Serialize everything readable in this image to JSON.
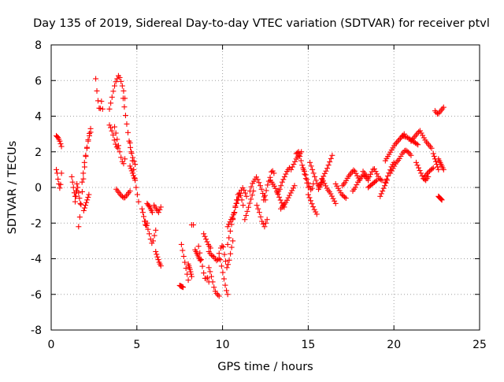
{
  "chart_data": {
    "type": "scatter",
    "title": "Day 135 of 2019, Sidereal Day-to-day VTEC variation (SDTVAR) for receiver ptvl",
    "xlabel": "GPS time / hours",
    "ylabel": "SDTVAR / TECUs",
    "xlim": [
      0,
      25
    ],
    "ylim": [
      -8,
      8
    ],
    "xticks": [
      0,
      5,
      10,
      15,
      20,
      25
    ],
    "yticks": [
      -8,
      -6,
      -4,
      -2,
      0,
      2,
      4,
      6,
      8
    ],
    "xtick_labels": [
      "0",
      "5",
      "10",
      "15",
      "20",
      "25"
    ],
    "ytick_labels": [
      "-8",
      "-6",
      "-4",
      "-2",
      "0",
      "2",
      "4",
      "6",
      "8"
    ],
    "grid": true,
    "marker": "+",
    "marker_color": "#ff0000",
    "series": [
      {
        "name": "ptvl",
        "segments": [
          {
            "x0": 0.3,
            "x1": 0.6,
            "y": [
              2.9,
              2.8,
              2.6,
              2.3
            ]
          },
          {
            "x0": 0.3,
            "x1": 0.6,
            "y": [
              1.0,
              0.9,
              0.6,
              0.4,
              0.2,
              0.0,
              -0.1,
              0.3,
              0.8
            ]
          },
          {
            "x0": 1.2,
            "x1": 1.5,
            "y": [
              0.6,
              0.3,
              0.0,
              -0.3,
              -0.5,
              -0.2,
              0.2
            ]
          },
          {
            "x0": 1.4,
            "x1": 1.7,
            "y": [
              -0.8,
              -0.5,
              -0.2,
              0.0,
              -0.3,
              -0.6,
              -0.9
            ]
          },
          {
            "x0": 1.6,
            "x1": 2.3,
            "y": [
              -2.2,
              -1.6,
              -0.8,
              0.0,
              0.8,
              1.5,
              2.1,
              2.6,
              3.0,
              3.3
            ]
          },
          {
            "x0": 1.8,
            "x1": 2.3,
            "y": [
              0.3,
              0.8,
              1.4,
              1.8,
              2.2,
              2.6,
              2.9,
              3.1
            ]
          },
          {
            "x0": 1.9,
            "x1": 2.2,
            "y": [
              -1.3,
              -1.0,
              -0.7,
              -0.4
            ]
          },
          {
            "x0": 2.6,
            "x1": 3.0,
            "y": [
              6.1,
              5.5,
              5.0,
              4.6,
              4.3,
              4.5,
              4.9,
              4.4
            ]
          },
          {
            "x0": 3.4,
            "x1": 4.3,
            "y": [
              4.4,
              4.8,
              5.2,
              5.6,
              5.9,
              6.1,
              6.3,
              6.1,
              5.8,
              5.5,
              5.0
            ]
          },
          {
            "x0": 3.4,
            "x1": 3.9,
            "y": [
              3.5,
              3.3,
              3.0,
              2.6,
              2.3,
              2.2
            ]
          },
          {
            "x0": 3.7,
            "x1": 4.3,
            "y": [
              3.4,
              3.0,
              2.6,
              2.2,
              1.8,
              1.5,
              1.3,
              1.6
            ]
          },
          {
            "x0": 3.8,
            "x1": 4.6,
            "y": [
              -0.1,
              -0.3,
              -0.5,
              -0.6,
              -0.4,
              -0.2
            ]
          },
          {
            "x0": 4.2,
            "x1": 4.9,
            "y": [
              5.0,
              4.2,
              3.4,
              2.6,
              2.0,
              1.6,
              1.3
            ]
          },
          {
            "x0": 4.6,
            "x1": 5.1,
            "y": [
              2.5,
              2.0,
              1.5,
              1.0,
              0.5,
              0.0,
              -0.4,
              -0.8
            ]
          },
          {
            "x0": 4.6,
            "x1": 4.9,
            "y": [
              1.2,
              0.8,
              0.4
            ]
          },
          {
            "x0": 5.3,
            "x1": 5.6,
            "y": [
              -1.2,
              -1.5,
              -1.9,
              -2.2,
              -2.0
            ]
          },
          {
            "x0": 5.5,
            "x1": 6.1,
            "y": [
              -1.9,
              -2.2,
              -2.5,
              -2.9,
              -3.2,
              -2.8,
              -2.4
            ]
          },
          {
            "x0": 5.6,
            "x1": 5.9,
            "y": [
              -0.9,
              -1.1,
              -1.4
            ]
          },
          {
            "x0": 6.0,
            "x1": 6.4,
            "y": [
              -1.0,
              -1.2,
              -1.4,
              -1.1
            ]
          },
          {
            "x0": 6.1,
            "x1": 6.4,
            "y": [
              -3.6,
              -3.9,
              -4.2,
              -4.4
            ]
          },
          {
            "x0": 7.5,
            "x1": 7.7,
            "y": [
              -5.5,
              -5.6
            ]
          },
          {
            "x0": 7.6,
            "x1": 8.0,
            "y": [
              -3.2,
              -3.6,
              -4.0,
              -4.4,
              -4.8,
              -5.2
            ]
          },
          {
            "x0": 8.0,
            "x1": 8.2,
            "y": [
              -4.3,
              -4.6,
              -5.0
            ]
          },
          {
            "x0": 8.2,
            "x1": 8.3,
            "y": [
              -2.1
            ]
          },
          {
            "x0": 8.4,
            "x1": 8.7,
            "y": [
              -3.5,
              -3.8,
              -4.1
            ]
          },
          {
            "x0": 8.6,
            "x1": 9.2,
            "y": [
              -3.3,
              -3.8,
              -4.3,
              -4.8,
              -5.2,
              -5.0,
              -5.3
            ]
          },
          {
            "x0": 8.9,
            "x1": 9.3,
            "y": [
              -2.6,
              -2.9,
              -3.2,
              -3.4
            ]
          },
          {
            "x0": 9.2,
            "x1": 9.8,
            "y": [
              -4.5,
              -4.8,
              -5.2,
              -5.6,
              -5.9,
              -6.0,
              -6.1
            ]
          },
          {
            "x0": 9.2,
            "x1": 9.8,
            "y": [
              -3.6,
              -3.8,
              -3.9,
              -4.1,
              -4.0
            ]
          },
          {
            "x0": 9.8,
            "x1": 10.3,
            "y": [
              -3.7,
              -4.2,
              -4.7,
              -5.2,
              -5.7,
              -6.0
            ]
          },
          {
            "x0": 9.9,
            "x1": 10.6,
            "y": [
              -3.4,
              -3.2,
              -3.9,
              -4.5,
              -4.2,
              -3.6,
              -3.0
            ]
          },
          {
            "x0": 10.3,
            "x1": 10.9,
            "y": [
              -3.2,
              -2.6,
              -2.0,
              -1.5,
              -1.0,
              -0.7
            ]
          },
          {
            "x0": 10.3,
            "x1": 10.7,
            "y": [
              -2.2,
              -1.8,
              -1.4
            ]
          },
          {
            "x0": 10.6,
            "x1": 11.2,
            "y": [
              -1.8,
              -1.3,
              -0.8,
              -0.4,
              -0.3,
              -0.6,
              -1.0
            ]
          },
          {
            "x0": 10.8,
            "x1": 11.4,
            "y": [
              -0.9,
              -0.6,
              -0.3,
              0.0,
              -0.2,
              -0.5
            ]
          },
          {
            "x0": 11.3,
            "x1": 11.8,
            "y": [
              -1.8,
              -1.4,
              -1.0,
              -0.6,
              -0.2
            ]
          },
          {
            "x0": 11.6,
            "x1": 12.5,
            "y": [
              -0.2,
              0.2,
              0.4,
              0.6,
              0.3,
              0.0,
              -0.4,
              -0.7
            ]
          },
          {
            "x0": 12.0,
            "x1": 12.6,
            "y": [
              -1.0,
              -1.4,
              -1.9,
              -2.2,
              -1.8
            ]
          },
          {
            "x0": 12.4,
            "x1": 13.0,
            "y": [
              -0.7,
              -0.3,
              0.2,
              0.5,
              1.0,
              0.8
            ]
          },
          {
            "x0": 12.8,
            "x1": 13.6,
            "y": [
              0.4,
              0.2,
              0.0,
              -0.3,
              -0.6,
              -0.9,
              -1.1
            ]
          },
          {
            "x0": 13.2,
            "x1": 13.9,
            "y": [
              -0.3,
              -0.1,
              0.3,
              0.6,
              0.9,
              1.1
            ]
          },
          {
            "x0": 13.4,
            "x1": 14.2,
            "y": [
              -1.2,
              -1.0,
              -0.8,
              -0.5,
              -0.2,
              0.1
            ]
          },
          {
            "x0": 14.0,
            "x1": 14.6,
            "y": [
              1.0,
              1.3,
              1.6,
              1.8,
              2.0
            ]
          },
          {
            "x0": 14.3,
            "x1": 15.0,
            "y": [
              1.9,
              2.0,
              1.5,
              1.0,
              0.5,
              0.0
            ]
          },
          {
            "x0": 14.7,
            "x1": 15.3,
            "y": [
              1.1,
              0.8,
              0.4,
              0.1,
              -0.2,
              0.2
            ]
          },
          {
            "x0": 15.0,
            "x1": 15.5,
            "y": [
              -0.4,
              -0.8,
              -1.2,
              -1.5
            ]
          },
          {
            "x0": 15.1,
            "x1": 15.8,
            "y": [
              1.4,
              1.0,
              0.6,
              0.2,
              0.0,
              0.3
            ]
          },
          {
            "x0": 15.6,
            "x1": 16.4,
            "y": [
              -0.1,
              0.3,
              0.7,
              1.0,
              1.4,
              1.8
            ]
          },
          {
            "x0": 15.8,
            "x1": 16.6,
            "y": [
              0.5,
              0.2,
              -0.1,
              -0.3,
              -0.6,
              -0.9
            ]
          },
          {
            "x0": 16.6,
            "x1": 17.2,
            "y": [
              0.2,
              0.0,
              -0.2,
              -0.4,
              -0.5,
              -0.6
            ]
          },
          {
            "x0": 17.0,
            "x1": 18.0,
            "y": [
              0.1,
              0.3,
              0.6,
              0.8,
              1.0,
              0.7,
              0.4
            ]
          },
          {
            "x0": 17.6,
            "x1": 18.5,
            "y": [
              -0.2,
              0.0,
              0.3,
              0.5,
              0.7,
              0.6,
              0.4
            ]
          },
          {
            "x0": 18.2,
            "x1": 19.3,
            "y": [
              0.9,
              0.7,
              0.5,
              0.8,
              1.1,
              0.8,
              0.5,
              0.4
            ]
          },
          {
            "x0": 18.5,
            "x1": 19.0,
            "y": [
              0.0,
              0.2,
              0.4
            ]
          },
          {
            "x0": 19.2,
            "x1": 19.6,
            "y": [
              -0.5,
              -0.2,
              0.1,
              0.4
            ]
          },
          {
            "x0": 19.5,
            "x1": 20.0,
            "y": [
              0.3,
              0.6,
              0.9,
              1.2,
              1.4
            ]
          },
          {
            "x0": 19.5,
            "x1": 20.6,
            "y": [
              1.5,
              1.8,
              2.1,
              2.4,
              2.6,
              2.8,
              3.0
            ]
          },
          {
            "x0": 19.8,
            "x1": 21.0,
            "y": [
              0.8,
              1.1,
              1.4,
              1.6,
              1.9,
              2.1,
              2.0,
              1.8
            ]
          },
          {
            "x0": 20.5,
            "x1": 21.4,
            "y": [
              2.9,
              2.8,
              2.6,
              2.4
            ]
          },
          {
            "x0": 21.0,
            "x1": 22.2,
            "y": [
              2.6,
              2.8,
              3.0,
              3.2,
              2.9,
              2.6,
              2.4,
              2.2
            ]
          },
          {
            "x0": 21.3,
            "x1": 22.0,
            "y": [
              1.4,
              1.1,
              0.8,
              0.5,
              0.4,
              0.6
            ]
          },
          {
            "x0": 21.8,
            "x1": 22.3,
            "y": [
              0.6,
              0.9,
              1.1
            ]
          },
          {
            "x0": 22.3,
            "x1": 22.6,
            "y": [
              1.9,
              1.6,
              1.3,
              1.0
            ]
          },
          {
            "x0": 22.4,
            "x1": 22.9,
            "y": [
              4.3,
              4.1,
              4.3,
              4.5
            ]
          },
          {
            "x0": 22.6,
            "x1": 22.9,
            "y": [
              1.6,
              1.3,
              1.0
            ]
          },
          {
            "x0": 22.6,
            "x1": 22.8,
            "y": [
              -0.5,
              -0.7
            ]
          }
        ]
      }
    ]
  }
}
